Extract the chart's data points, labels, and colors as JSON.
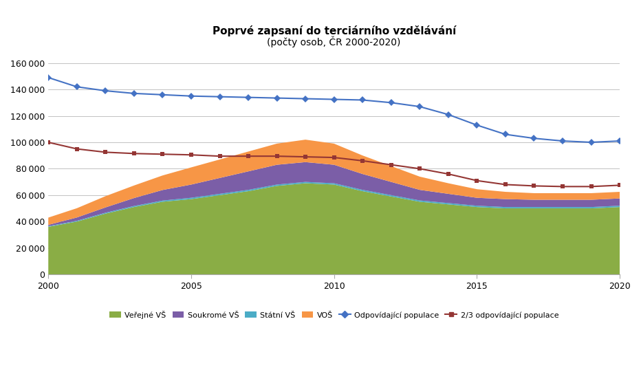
{
  "title": "Poprvé zapsaní do terciárního vzdělávání",
  "subtitle": "(počty osob, ČR 2000-2020)",
  "years": [
    2000,
    2001,
    2002,
    2003,
    2004,
    2005,
    2006,
    2007,
    2008,
    2009,
    2010,
    2011,
    2012,
    2013,
    2014,
    2015,
    2016,
    2017,
    2018,
    2019,
    2020
  ],
  "verejna_vs": [
    36000,
    40000,
    46000,
    51000,
    55000,
    57000,
    60000,
    63000,
    67000,
    69000,
    68000,
    63000,
    59000,
    55000,
    53000,
    51000,
    50000,
    50000,
    50000,
    50000,
    51000
  ],
  "statni_vs": [
    500,
    600,
    700,
    800,
    900,
    1000,
    1000,
    1000,
    1000,
    1000,
    1000,
    1000,
    1000,
    1000,
    1000,
    1000,
    1000,
    1000,
    1000,
    1000,
    1000
  ],
  "soukroma_vs": [
    1000,
    2500,
    4000,
    6000,
    8000,
    10000,
    12000,
    14000,
    15000,
    15000,
    14000,
    12000,
    10000,
    8000,
    7000,
    6000,
    6000,
    5500,
    5500,
    5500,
    5500
  ],
  "vos": [
    5500,
    7000,
    8500,
    9500,
    11000,
    13000,
    14000,
    15000,
    16000,
    17000,
    16000,
    14000,
    12000,
    10000,
    8000,
    6500,
    5500,
    5000,
    5000,
    5000,
    5000
  ],
  "odpovidajici_populace": [
    149000,
    142000,
    139000,
    137000,
    136000,
    135000,
    134500,
    134000,
    133500,
    133000,
    132500,
    132000,
    130000,
    127000,
    121000,
    113000,
    106000,
    103000,
    101000,
    100000,
    101000
  ],
  "dva_treti_populace": [
    100000,
    95000,
    92500,
    91500,
    91000,
    90500,
    89500,
    89500,
    89500,
    89000,
    88500,
    86000,
    83000,
    80000,
    76000,
    71000,
    68000,
    67000,
    66500,
    66500,
    67500
  ],
  "color_verejna": "#8AAD45",
  "color_soukroma": "#7B5EA7",
  "color_statni": "#4BACC6",
  "color_vos": "#F79646",
  "color_odpovidajici": "#4472C4",
  "color_dva_treti": "#943634",
  "ylim": [
    0,
    170000
  ],
  "yticks": [
    0,
    20000,
    40000,
    60000,
    80000,
    100000,
    120000,
    140000,
    160000
  ],
  "xticks": [
    2000,
    2005,
    2010,
    2015,
    2020
  ],
  "legend_labels": [
    "Veřejné VŠ",
    "Soukromé VŠ",
    "Státní VŠ",
    "VOŠ",
    "Odpovídající populace",
    "2/3 odpovídající populace"
  ]
}
